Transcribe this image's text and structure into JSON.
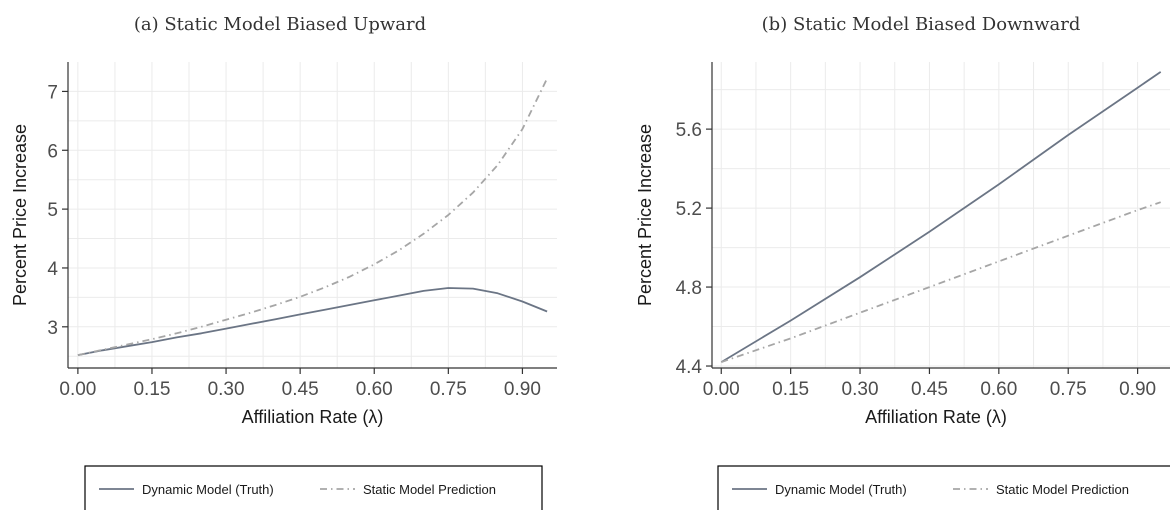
{
  "chart_data": [
    {
      "type": "line",
      "title": "(a) Static Model Biased Upward",
      "xlabel": "Affiliation Rate  (λ)",
      "ylabel": "Percent Price Increase",
      "xlim": [
        -0.02,
        0.97
      ],
      "ylim": [
        2.3,
        7.5
      ],
      "x_ticks": [
        0.0,
        0.15,
        0.3,
        0.45,
        0.6,
        0.75,
        0.9
      ],
      "x_tick_labels": [
        "0.00",
        "0.15",
        "0.30",
        "0.45",
        "0.60",
        "0.75",
        "0.90"
      ],
      "y_ticks": [
        3,
        4,
        5,
        6,
        7
      ],
      "y_tick_labels": [
        "3",
        "4",
        "5",
        "6",
        "7"
      ],
      "grid": true,
      "legend": "bottom",
      "x": [
        0.0,
        0.05,
        0.1,
        0.15,
        0.2,
        0.25,
        0.3,
        0.35,
        0.4,
        0.45,
        0.5,
        0.55,
        0.6,
        0.65,
        0.7,
        0.75,
        0.8,
        0.85,
        0.9,
        0.95
      ],
      "series": [
        {
          "name": "Dynamic Model (Truth)",
          "color": "#6b7585",
          "dash": "solid",
          "values": [
            2.52,
            2.6,
            2.67,
            2.74,
            2.82,
            2.89,
            2.97,
            3.05,
            3.13,
            3.21,
            3.29,
            3.37,
            3.45,
            3.53,
            3.61,
            3.66,
            3.65,
            3.57,
            3.43,
            3.26
          ]
        },
        {
          "name": "Static Model Prediction",
          "color": "#a6a6a6",
          "dash": "dashdot",
          "values": [
            2.52,
            2.61,
            2.7,
            2.79,
            2.89,
            3.0,
            3.12,
            3.24,
            3.37,
            3.51,
            3.67,
            3.85,
            4.06,
            4.3,
            4.58,
            4.9,
            5.28,
            5.75,
            6.36,
            7.22
          ]
        }
      ]
    },
    {
      "type": "line",
      "title": "(b) Static Model Biased Downward",
      "xlabel": "Affiliation Rate  (λ)",
      "ylabel": "Percent Price Increase",
      "xlim": [
        -0.02,
        0.97
      ],
      "ylim": [
        4.39,
        5.94
      ],
      "x_ticks": [
        0.0,
        0.15,
        0.3,
        0.45,
        0.6,
        0.75,
        0.9
      ],
      "x_tick_labels": [
        "0.00",
        "0.15",
        "0.30",
        "0.45",
        "0.60",
        "0.75",
        "0.90"
      ],
      "y_ticks": [
        4.4,
        4.8,
        5.2,
        5.6
      ],
      "y_tick_labels": [
        "4.4",
        "4.8",
        "5.2",
        "5.6"
      ],
      "grid": true,
      "legend": "bottom",
      "x": [
        0.0,
        0.15,
        0.3,
        0.45,
        0.6,
        0.75,
        0.9,
        0.95
      ],
      "series": [
        {
          "name": "Dynamic Model (Truth)",
          "color": "#6b7585",
          "dash": "solid",
          "values": [
            4.42,
            4.63,
            4.85,
            5.08,
            5.32,
            5.57,
            5.81,
            5.89
          ]
        },
        {
          "name": "Static Model Prediction",
          "color": "#a6a6a6",
          "dash": "dashdot",
          "values": [
            4.42,
            4.54,
            4.67,
            4.8,
            4.93,
            5.06,
            5.19,
            5.23
          ]
        }
      ]
    }
  ]
}
